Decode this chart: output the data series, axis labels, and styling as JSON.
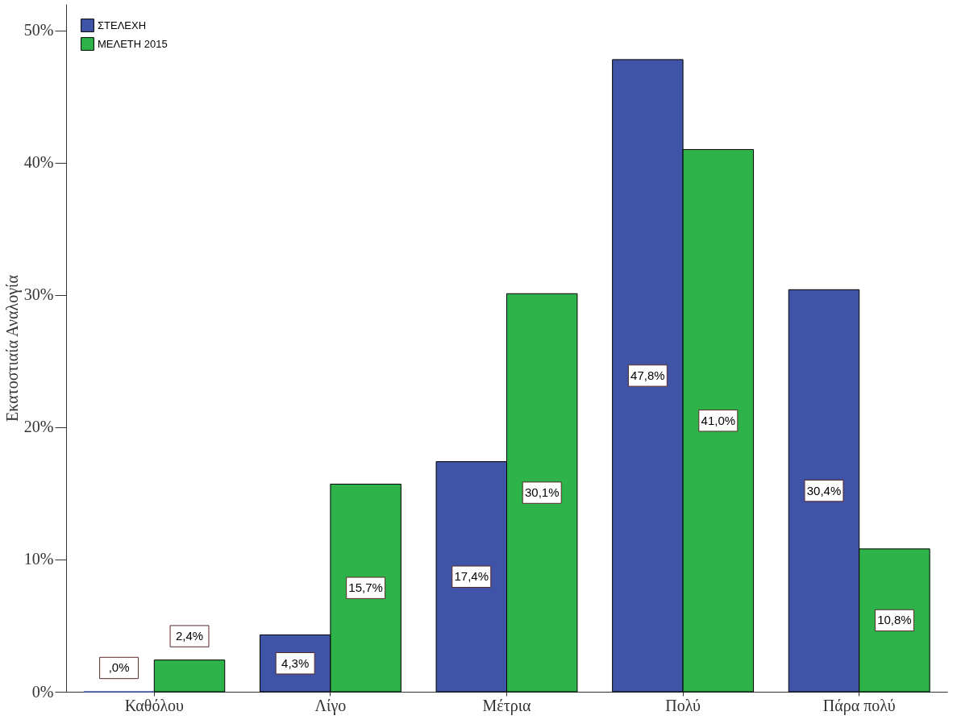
{
  "chart_data": {
    "type": "bar",
    "ylabel": "Εκατοστιαία Αναλογία",
    "categories": [
      "Καθόλου",
      "Λίγο",
      "Μέτρια",
      "Πολύ",
      "Πάρα πολύ"
    ],
    "series": [
      {
        "name": "ΣΤΕΛΕΧΗ",
        "color": "#3f54a6",
        "values": [
          0,
          4.3,
          17.4,
          47.8,
          30.4
        ],
        "value_labels": [
          ",0%",
          "4,3%",
          "17,4%",
          "47,8%",
          "30,4%"
        ]
      },
      {
        "name": "ΜΕΛΕΤΗ 2015",
        "color": "#2db34a",
        "values": [
          2.4,
          15.7,
          30.1,
          41.0,
          10.8
        ],
        "value_labels": [
          "2,4%",
          "15,7%",
          "30,1%",
          "41,0%",
          "10,8%"
        ]
      }
    ],
    "ylim": [
      0,
      52
    ],
    "yticks": [
      {
        "value": 0,
        "label": "0%"
      },
      {
        "value": 10,
        "label": "10%"
      },
      {
        "value": 20,
        "label": "20%"
      },
      {
        "value": 30,
        "label": "30%"
      },
      {
        "value": 40,
        "label": "40%"
      },
      {
        "value": 50,
        "label": "50%"
      }
    ],
    "grid": false,
    "legend": "top left"
  }
}
